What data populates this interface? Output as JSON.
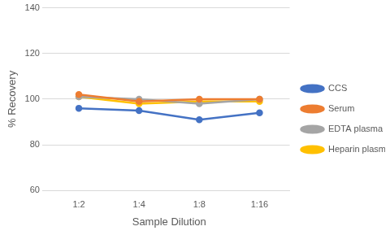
{
  "chart_data": {
    "type": "line",
    "x_label": "Sample Dilution",
    "y_label": "% Recovery",
    "categories": [
      "1:2",
      "1:4",
      "1:8",
      "1:16"
    ],
    "series": [
      {
        "name": "CCS",
        "color": "#4472c4",
        "values": [
          96,
          95,
          91,
          94
        ],
        "marker": "circle",
        "line_style": "solid"
      },
      {
        "name": "Serum",
        "color": "#ed7d31",
        "values": [
          102,
          99,
          100,
          100
        ],
        "marker": "circle",
        "line_style": "solid"
      },
      {
        "name": "EDTA plasma",
        "color": "#a5a5a5",
        "values": [
          101,
          100,
          98,
          100
        ],
        "marker": "circle",
        "line_style": "solid"
      },
      {
        "name": "Heparin plasma",
        "color": "#ffc000",
        "values": [
          101,
          98,
          99,
          99
        ],
        "marker": "circle",
        "line_style": "solid"
      }
    ],
    "ylim": [
      60,
      140
    ],
    "yticks": [
      60,
      80,
      100,
      120,
      140
    ],
    "grid": true,
    "legend": "right"
  }
}
